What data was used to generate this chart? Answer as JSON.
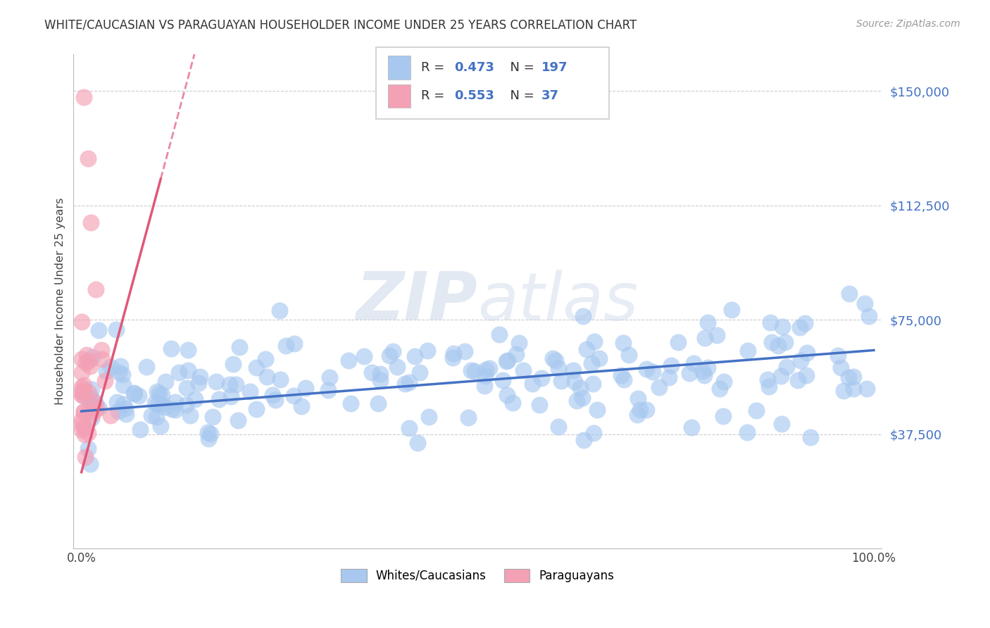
{
  "title": "WHITE/CAUCASIAN VS PARAGUAYAN HOUSEHOLDER INCOME UNDER 25 YEARS CORRELATION CHART",
  "source": "Source: ZipAtlas.com",
  "ylabel": "Householder Income Under 25 years",
  "blue_R": 0.473,
  "blue_N": 197,
  "pink_R": 0.553,
  "pink_N": 37,
  "blue_color": "#a8c8f0",
  "blue_line_color": "#4472c4",
  "pink_color": "#f4a0b5",
  "pink_line_color": "#e05878",
  "background_color": "#ffffff",
  "watermark_zip": "ZIP",
  "watermark_atlas": "atlas",
  "legend_label_blue": "Whites/Caucasians",
  "legend_label_pink": "Paraguayans",
  "xmin": 0.0,
  "xmax": 1.0,
  "ymin": 0,
  "ymax": 162000,
  "yticks": [
    0,
    37500,
    75000,
    112500,
    150000
  ],
  "ytick_labels": [
    "",
    "$37,500",
    "$75,000",
    "$112,500",
    "$150,000"
  ]
}
